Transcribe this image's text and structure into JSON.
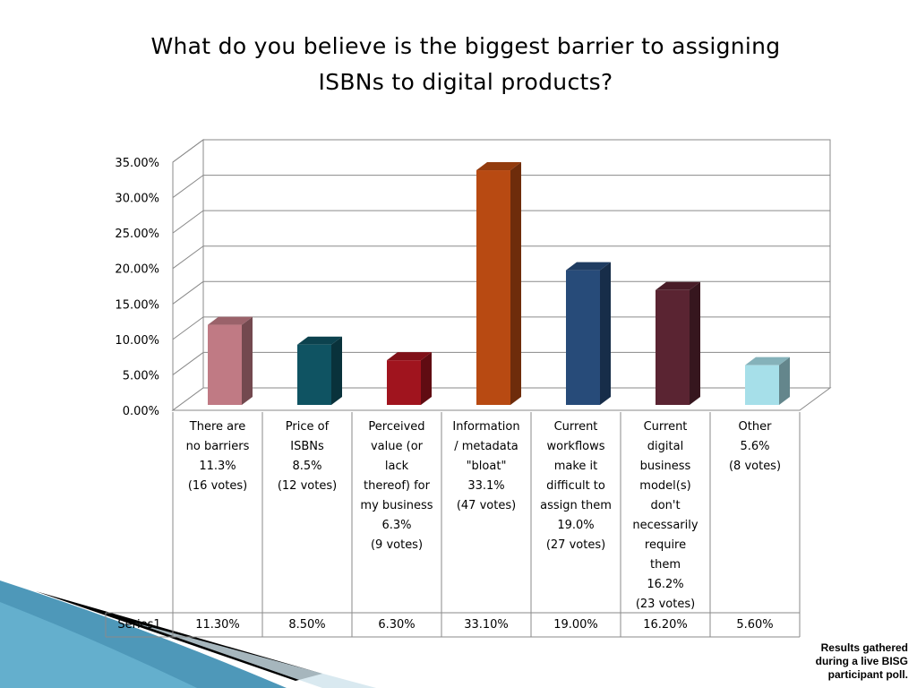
{
  "slide": {
    "title_line1": "What do you believe is the biggest barrier to assigning",
    "title_line2": "ISBNs to digital products?",
    "footnote_lines": [
      "Results gathered",
      "during a live BISG",
      "participant poll."
    ]
  },
  "chart_data": {
    "type": "bar",
    "style": "3d-column",
    "title": "What do you believe is the biggest barrier to assigning ISBNs to digital products?",
    "categories": [
      [
        "There are",
        "no barriers",
        "11.3%",
        "(16 votes)"
      ],
      [
        "Price of",
        "ISBNs",
        "8.5%",
        "(12 votes)"
      ],
      [
        "Perceived",
        "value (or",
        "lack",
        "thereof) for",
        "my business",
        "6.3%",
        "(9 votes)"
      ],
      [
        "Information",
        "/ metadata",
        "\"bloat\"",
        "33.1%",
        "(47 votes)"
      ],
      [
        "Current",
        "workflows",
        "make it",
        "difficult to",
        "assign them",
        "19.0%",
        "(27 votes)"
      ],
      [
        "Current",
        "digital",
        "business",
        "model(s)",
        "don't",
        "necessarily",
        "require",
        "them",
        "16.2%",
        "(23 votes)"
      ],
      [
        "Other",
        "5.6%",
        "(8 votes)"
      ]
    ],
    "series": [
      {
        "name": "Series1",
        "values": [
          11.3,
          8.5,
          6.3,
          33.1,
          19.0,
          16.2,
          5.6
        ],
        "value_labels": [
          "11.30%",
          "8.50%",
          "6.30%",
          "33.10%",
          "19.00%",
          "16.20%",
          "5.60%"
        ]
      }
    ],
    "bar_colors": [
      "#c07a84",
      "#0f5362",
      "#a0141e",
      "#b84a12",
      "#274b79",
      "#5a2432",
      "#a6dfe9"
    ],
    "yticks": [
      "0.00%",
      "5.00%",
      "10.00%",
      "15.00%",
      "20.00%",
      "25.00%",
      "30.00%",
      "35.00%"
    ],
    "ylim": [
      0,
      35
    ],
    "grid": true,
    "data_table": true
  }
}
